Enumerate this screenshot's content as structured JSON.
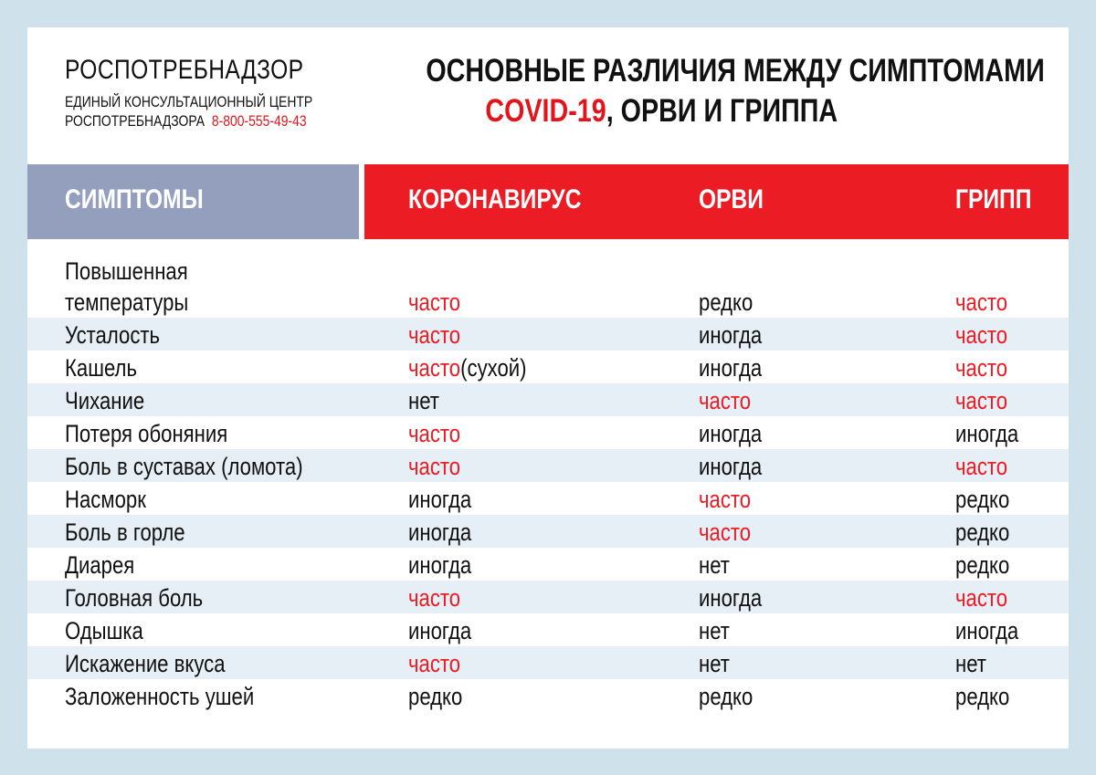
{
  "brand": {
    "name": "РОСПОТРЕБНАДЗОР",
    "line1": "ЕДИНЫЙ КОНСУЛЬТАЦИОННЫЙ ЦЕНТР",
    "line2": "РОСПОТРЕБНАДЗОРА",
    "phone": "8-800-555-49-43"
  },
  "title": {
    "line1": "ОСНОВНЫЕ РАЗЛИЧИЯ МЕЖДУ СИМПТОМАМИ",
    "covid": "COVID-19",
    "rest": ", ОРВИ И ГРИППА"
  },
  "colors": {
    "accent": "#ec1c24",
    "header_gray": "#949fbe",
    "stripe": "#e6eff5",
    "background": "#cfe2ec"
  },
  "headers": [
    "СИМПТОМЫ",
    "КОРОНАВИРУС",
    "ОРВИ",
    "ГРИПП"
  ],
  "rows": [
    {
      "symptom": "Повышенная температуры",
      "cells": [
        {
          "value": "часто",
          "note": ""
        },
        {
          "value": "редко",
          "note": ""
        },
        {
          "value": "часто",
          "note": ""
        }
      ]
    },
    {
      "symptom": "Усталость",
      "cells": [
        {
          "value": "часто",
          "note": ""
        },
        {
          "value": "иногда",
          "note": ""
        },
        {
          "value": "часто",
          "note": ""
        }
      ]
    },
    {
      "symptom": "Кашель",
      "cells": [
        {
          "value": "часто",
          "note": "(сухой)"
        },
        {
          "value": "иногда",
          "note": ""
        },
        {
          "value": "часто",
          "note": ""
        }
      ]
    },
    {
      "symptom": "Чихание",
      "cells": [
        {
          "value": "нет",
          "note": ""
        },
        {
          "value": "часто",
          "note": ""
        },
        {
          "value": "часто",
          "note": ""
        }
      ]
    },
    {
      "symptom": "Потеря обоняния",
      "cells": [
        {
          "value": "часто",
          "note": ""
        },
        {
          "value": "иногда",
          "note": ""
        },
        {
          "value": "иногда",
          "note": ""
        }
      ]
    },
    {
      "symptom": "Боль в суставах (ломота)",
      "cells": [
        {
          "value": "часто",
          "note": ""
        },
        {
          "value": "иногда",
          "note": ""
        },
        {
          "value": "часто",
          "note": ""
        }
      ]
    },
    {
      "symptom": "Насморк",
      "cells": [
        {
          "value": "иногда",
          "note": ""
        },
        {
          "value": "часто",
          "note": ""
        },
        {
          "value": "редко",
          "note": ""
        }
      ]
    },
    {
      "symptom": "Боль в горле",
      "cells": [
        {
          "value": "иногда",
          "note": ""
        },
        {
          "value": "часто",
          "note": ""
        },
        {
          "value": "редко",
          "note": ""
        }
      ]
    },
    {
      "symptom": "Диарея",
      "cells": [
        {
          "value": "иногда",
          "note": ""
        },
        {
          "value": "нет",
          "note": ""
        },
        {
          "value": "редко",
          "note": ""
        }
      ]
    },
    {
      "symptom": "Головная боль",
      "cells": [
        {
          "value": "часто",
          "note": ""
        },
        {
          "value": "иногда",
          "note": ""
        },
        {
          "value": "часто",
          "note": ""
        }
      ]
    },
    {
      "symptom": "Одышка",
      "cells": [
        {
          "value": "иногда",
          "note": ""
        },
        {
          "value": "нет",
          "note": ""
        },
        {
          "value": "иногда",
          "note": ""
        }
      ]
    },
    {
      "symptom": "Искажение вкуса",
      "cells": [
        {
          "value": "часто",
          "note": ""
        },
        {
          "value": "нет",
          "note": ""
        },
        {
          "value": "нет",
          "note": ""
        }
      ]
    },
    {
      "symptom": "Заложенность ушей",
      "cells": [
        {
          "value": "редко",
          "note": ""
        },
        {
          "value": "редко",
          "note": ""
        },
        {
          "value": "редко",
          "note": ""
        }
      ]
    }
  ]
}
